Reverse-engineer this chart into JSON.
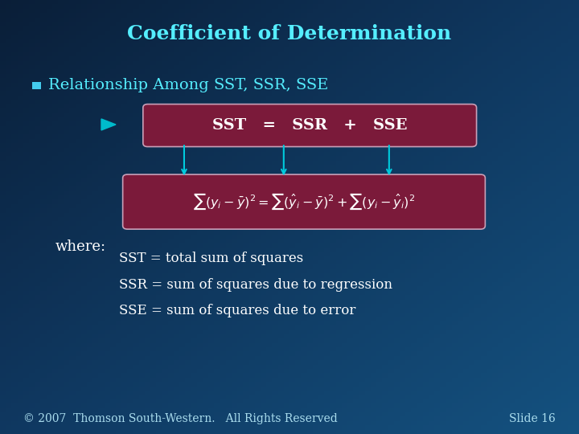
{
  "title": "Coefficient of Determination",
  "title_color": "#55EEFF",
  "title_fontsize": 18,
  "bullet_text": "Relationship Among SST, SSR, SSE",
  "bullet_color": "#55EEFF",
  "bullet_fontsize": 14,
  "box1_color": "#7B1A3A",
  "box2_color": "#7B1A3A",
  "box_border_color": "#C8A0B8",
  "arrow_color": "#00CCDD",
  "formula_text": "$\\sum(y_i - \\bar{y})^2 = \\sum(\\hat{y}_i - \\bar{y})^2 + \\sum(y_i - \\hat{y}_i)^2$",
  "where_text": "where:",
  "where_color": "#FFFFFF",
  "def1": "SST = total sum of squares",
  "def2": "SSR = sum of squares due to regression",
  "def3": "SSE = sum of squares due to error",
  "def_color": "#FFFFFF",
  "def_fontsize": 12,
  "footer_left": "© 2007  Thomson South-Western.   All Rights Reserved",
  "footer_right": "Slide 16",
  "footer_color": "#AADDEE",
  "footer_fontsize": 10,
  "bg_tl": [
    0.04,
    0.12,
    0.22
  ],
  "bg_tr": [
    0.06,
    0.22,
    0.38
  ],
  "bg_bl": [
    0.06,
    0.22,
    0.38
  ],
  "bg_br": [
    0.08,
    0.32,
    0.5
  ]
}
